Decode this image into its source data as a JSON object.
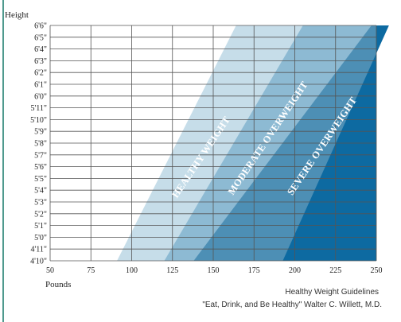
{
  "caption": {
    "line1": "Healthy Weight Guidelines",
    "line2": "\"Eat, Drink, and Be Healthy\"  Walter C. Willett, M.D."
  },
  "chart_data": {
    "type": "area",
    "ylabel": "Height",
    "xlabel": "Pounds",
    "xlim": [
      50,
      250
    ],
    "x_ticks": [
      50,
      75,
      100,
      125,
      150,
      175,
      200,
      225,
      250
    ],
    "y_ticks_inches": [
      58,
      59,
      60,
      61,
      62,
      63,
      64,
      65,
      66,
      67,
      68,
      69,
      70,
      71,
      72,
      73,
      74,
      75,
      76,
      77,
      78
    ],
    "y_tick_labels": [
      "4'10\"",
      "4'11\"",
      "5'0\"",
      "5'1\"",
      "5'2\"",
      "5'3\"",
      "5'4\"",
      "5'5\"",
      "5'6\"",
      "5'7\"",
      "5'8\"",
      "5'9\"",
      "5'10\"",
      "5'11\"",
      "6'0\"",
      "6'1\"",
      "6'2\"",
      "6'3\"",
      "6'4\"",
      "6'5\"",
      "6'6\""
    ],
    "grid": true,
    "zones": [
      {
        "name": "HEALTHY WEIGHT",
        "color": "#c6dde9",
        "bottom_pounds": 91,
        "top_pounds": 164
      },
      {
        "name": "MODERATE OVERWEIGHT",
        "color": "#8dbad3",
        "bottom_pounds": 120,
        "top_pounds": 205
      },
      {
        "name": "SEVERE OVERWEIGHT",
        "color": "#4d8fb5",
        "bottom_pounds": 138,
        "top_pounds": 247
      },
      {
        "name": "",
        "color": "#0d6aa1",
        "bottom_pounds": 250,
        "top_pounds": 250
      }
    ]
  }
}
